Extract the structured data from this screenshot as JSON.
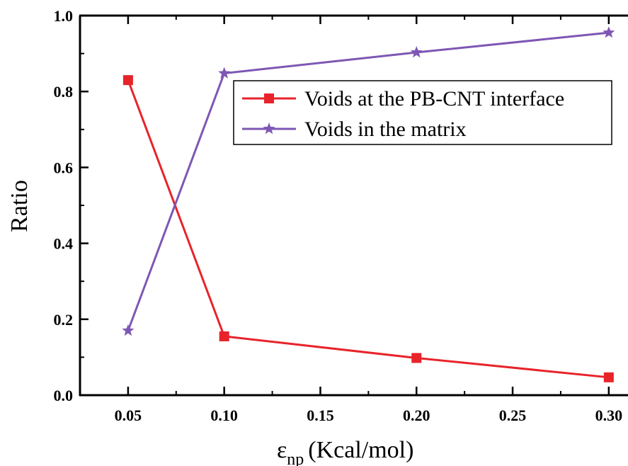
{
  "chart_data": {
    "type": "line",
    "title": "",
    "ylabel": "Ratio",
    "xlabel": {
      "base": "ε",
      "subscript": "np",
      "unit": "(Kcal/mol)"
    },
    "xlim": [
      0.025,
      0.31
    ],
    "ylim": [
      0.0,
      1.0
    ],
    "x": [
      0.05,
      0.1,
      0.2,
      0.3
    ],
    "x_ticks": [
      0.05,
      0.1,
      0.15,
      0.2,
      0.25,
      0.3
    ],
    "x_tick_labels": [
      "0.05",
      "0.10",
      "0.15",
      "0.20",
      "0.25",
      "0.30"
    ],
    "y_ticks": [
      0.0,
      0.2,
      0.4,
      0.6,
      0.8,
      1.0
    ],
    "y_tick_labels": [
      "0.0",
      "0.2",
      "0.4",
      "0.6",
      "0.8",
      "1.0"
    ],
    "grid": false,
    "legend_position": "upper-right",
    "series": [
      {
        "name": "Voids at the PB-CNT interface",
        "values": [
          0.83,
          0.155,
          0.098,
          0.047
        ],
        "color": "#e8232a",
        "marker": "square"
      },
      {
        "name": "Voids in the matrix",
        "values": [
          0.17,
          0.848,
          0.903,
          0.955
        ],
        "color": "#7e57b4",
        "marker": "star"
      }
    ]
  }
}
